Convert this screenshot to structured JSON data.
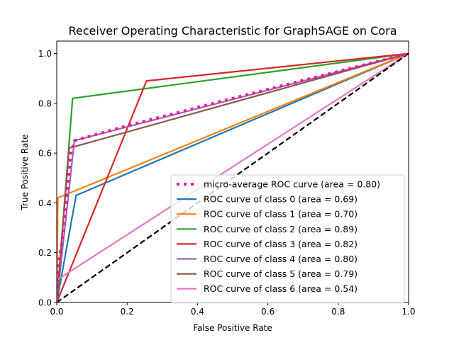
{
  "chart_data": {
    "type": "line",
    "title": "Receiver Operating Characteristic for GraphSAGE on Cora",
    "xlabel": "False Positive Rate",
    "ylabel": "True Positive Rate",
    "xlim": [
      0.0,
      1.0
    ],
    "ylim": [
      0.0,
      1.05
    ],
    "x_ticks": [
      0.0,
      0.2,
      0.4,
      0.6,
      0.8,
      1.0
    ],
    "y_ticks": [
      0.0,
      0.2,
      0.4,
      0.6,
      0.8,
      1.0
    ],
    "x_tick_labels": [
      "0.0",
      "0.2",
      "0.4",
      "0.6",
      "0.8",
      "1.0"
    ],
    "y_tick_labels": [
      "0.0",
      "0.2",
      "0.4",
      "0.6",
      "0.8",
      "1.0"
    ],
    "grid": false,
    "legend_position": "lower-right",
    "series": [
      {
        "name": "micro-average ROC curve (area = 0.80)",
        "color": "#ff1493",
        "style": "dotted",
        "points": [
          [
            0.0,
            0.0
          ],
          [
            0.0,
            0.1
          ],
          [
            0.02,
            0.3
          ],
          [
            0.04,
            0.6
          ],
          [
            0.05,
            0.65
          ],
          [
            0.2,
            0.71
          ],
          [
            0.5,
            0.82
          ],
          [
            1.0,
            1.0
          ]
        ]
      },
      {
        "name": "ROC curve of class 0 (area = 0.69)",
        "color": "#1f77b4",
        "style": "solid",
        "points": [
          [
            0.0,
            0.0
          ],
          [
            0.055,
            0.43
          ],
          [
            1.0,
            1.0
          ]
        ]
      },
      {
        "name": "ROC curve of class 1 (area = 0.70)",
        "color": "#ff7f0e",
        "style": "solid",
        "points": [
          [
            0.0,
            0.0
          ],
          [
            0.003,
            0.42
          ],
          [
            1.0,
            1.0
          ]
        ]
      },
      {
        "name": "ROC curve of class 2 (area = 0.89)",
        "color": "#2ca02c",
        "style": "solid",
        "points": [
          [
            0.0,
            0.0
          ],
          [
            0.045,
            0.82
          ],
          [
            1.0,
            1.0
          ]
        ]
      },
      {
        "name": "ROC curve of class 3 (area = 0.82)",
        "color": "#d62728",
        "style": "solid",
        "points": [
          [
            0.0,
            0.0
          ],
          [
            0.255,
            0.89
          ],
          [
            1.0,
            1.0
          ]
        ]
      },
      {
        "name": "ROC curve of class 4 (area = 0.80)",
        "color": "#9467bd",
        "style": "solid",
        "points": [
          [
            0.0,
            0.0
          ],
          [
            0.05,
            0.65
          ],
          [
            1.0,
            1.0
          ]
        ]
      },
      {
        "name": "ROC curve of class 5 (area = 0.79)",
        "color": "#8c564b",
        "style": "solid",
        "points": [
          [
            0.0,
            0.0
          ],
          [
            0.035,
            0.62
          ],
          [
            1.0,
            1.0
          ]
        ]
      },
      {
        "name": "ROC curve of class 6 (area = 0.54)",
        "color": "#e377c2",
        "style": "solid",
        "points": [
          [
            0.0,
            0.0
          ],
          [
            0.0,
            0.09
          ],
          [
            1.0,
            1.0
          ]
        ]
      },
      {
        "name": "",
        "color": "#000000",
        "style": "dashed",
        "points": [
          [
            0.0,
            0.0
          ],
          [
            1.0,
            1.0
          ]
        ]
      }
    ]
  }
}
